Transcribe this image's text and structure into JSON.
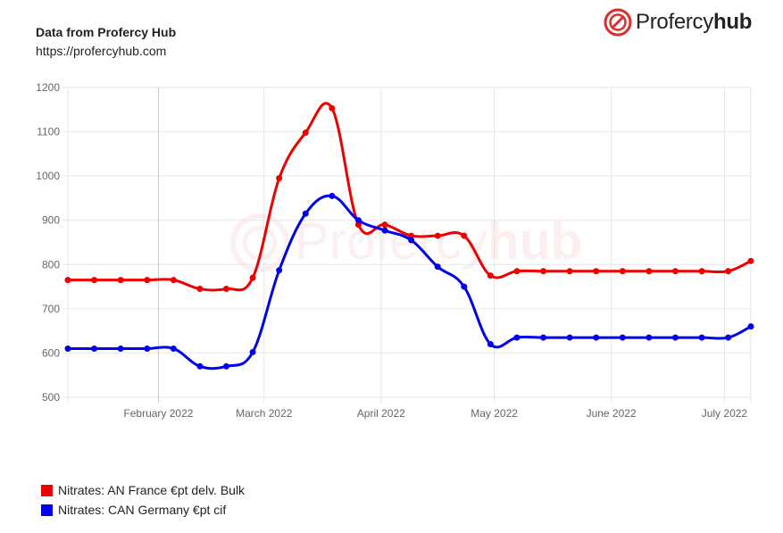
{
  "header": {
    "title": "Data from Profercy Hub",
    "url": "https://profercyhub.com"
  },
  "logo": {
    "name_regular": "Profercy",
    "name_bold": "hub",
    "accent": "#e02b2b"
  },
  "watermark": {
    "regular": "Profercy",
    "bold": "hub"
  },
  "chart_data": {
    "type": "line",
    "title": "",
    "xlabel": "",
    "ylabel": "",
    "ylim": [
      500,
      1200
    ],
    "yticks": [
      500,
      600,
      700,
      800,
      900,
      1000,
      1100,
      1200
    ],
    "xlim": [
      "2022-01-08",
      "2022-07-08"
    ],
    "xticks": [
      {
        "date": "2022-02-01",
        "label": "February 2022"
      },
      {
        "date": "2022-03-01",
        "label": "March 2022"
      },
      {
        "date": "2022-04-01",
        "label": "April 2022"
      },
      {
        "date": "2022-05-01",
        "label": "May 2022"
      },
      {
        "date": "2022-06-01",
        "label": "June 2022"
      },
      {
        "date": "2022-07-01",
        "label": "July 2022"
      }
    ],
    "grid": true,
    "legend_position": "bottom-left",
    "x": [
      "2022-01-08",
      "2022-01-15",
      "2022-01-22",
      "2022-01-29",
      "2022-02-05",
      "2022-02-12",
      "2022-02-19",
      "2022-02-26",
      "2022-03-05",
      "2022-03-12",
      "2022-03-19",
      "2022-03-26",
      "2022-04-02",
      "2022-04-09",
      "2022-04-16",
      "2022-04-23",
      "2022-04-30",
      "2022-05-07",
      "2022-05-14",
      "2022-05-21",
      "2022-05-28",
      "2022-06-04",
      "2022-06-11",
      "2022-06-18",
      "2022-06-25",
      "2022-07-02",
      "2022-07-08"
    ],
    "series": [
      {
        "name": "Nitrates: AN France €pt delv. Bulk",
        "color": "#ee0000",
        "values": [
          765,
          765,
          765,
          765,
          765,
          745,
          745,
          770,
          995,
          1098,
          1153,
          890,
          890,
          865,
          865,
          865,
          775,
          785,
          785,
          785,
          785,
          785,
          785,
          785,
          785,
          785,
          808
        ]
      },
      {
        "name": "Nitrates: CAN Germany €pt cif",
        "color": "#0000ee",
        "values": [
          610,
          610,
          610,
          610,
          610,
          570,
          570,
          602,
          787,
          915,
          955,
          900,
          877,
          855,
          795,
          750,
          620,
          635,
          635,
          635,
          635,
          635,
          635,
          635,
          635,
          635,
          660
        ]
      }
    ]
  }
}
